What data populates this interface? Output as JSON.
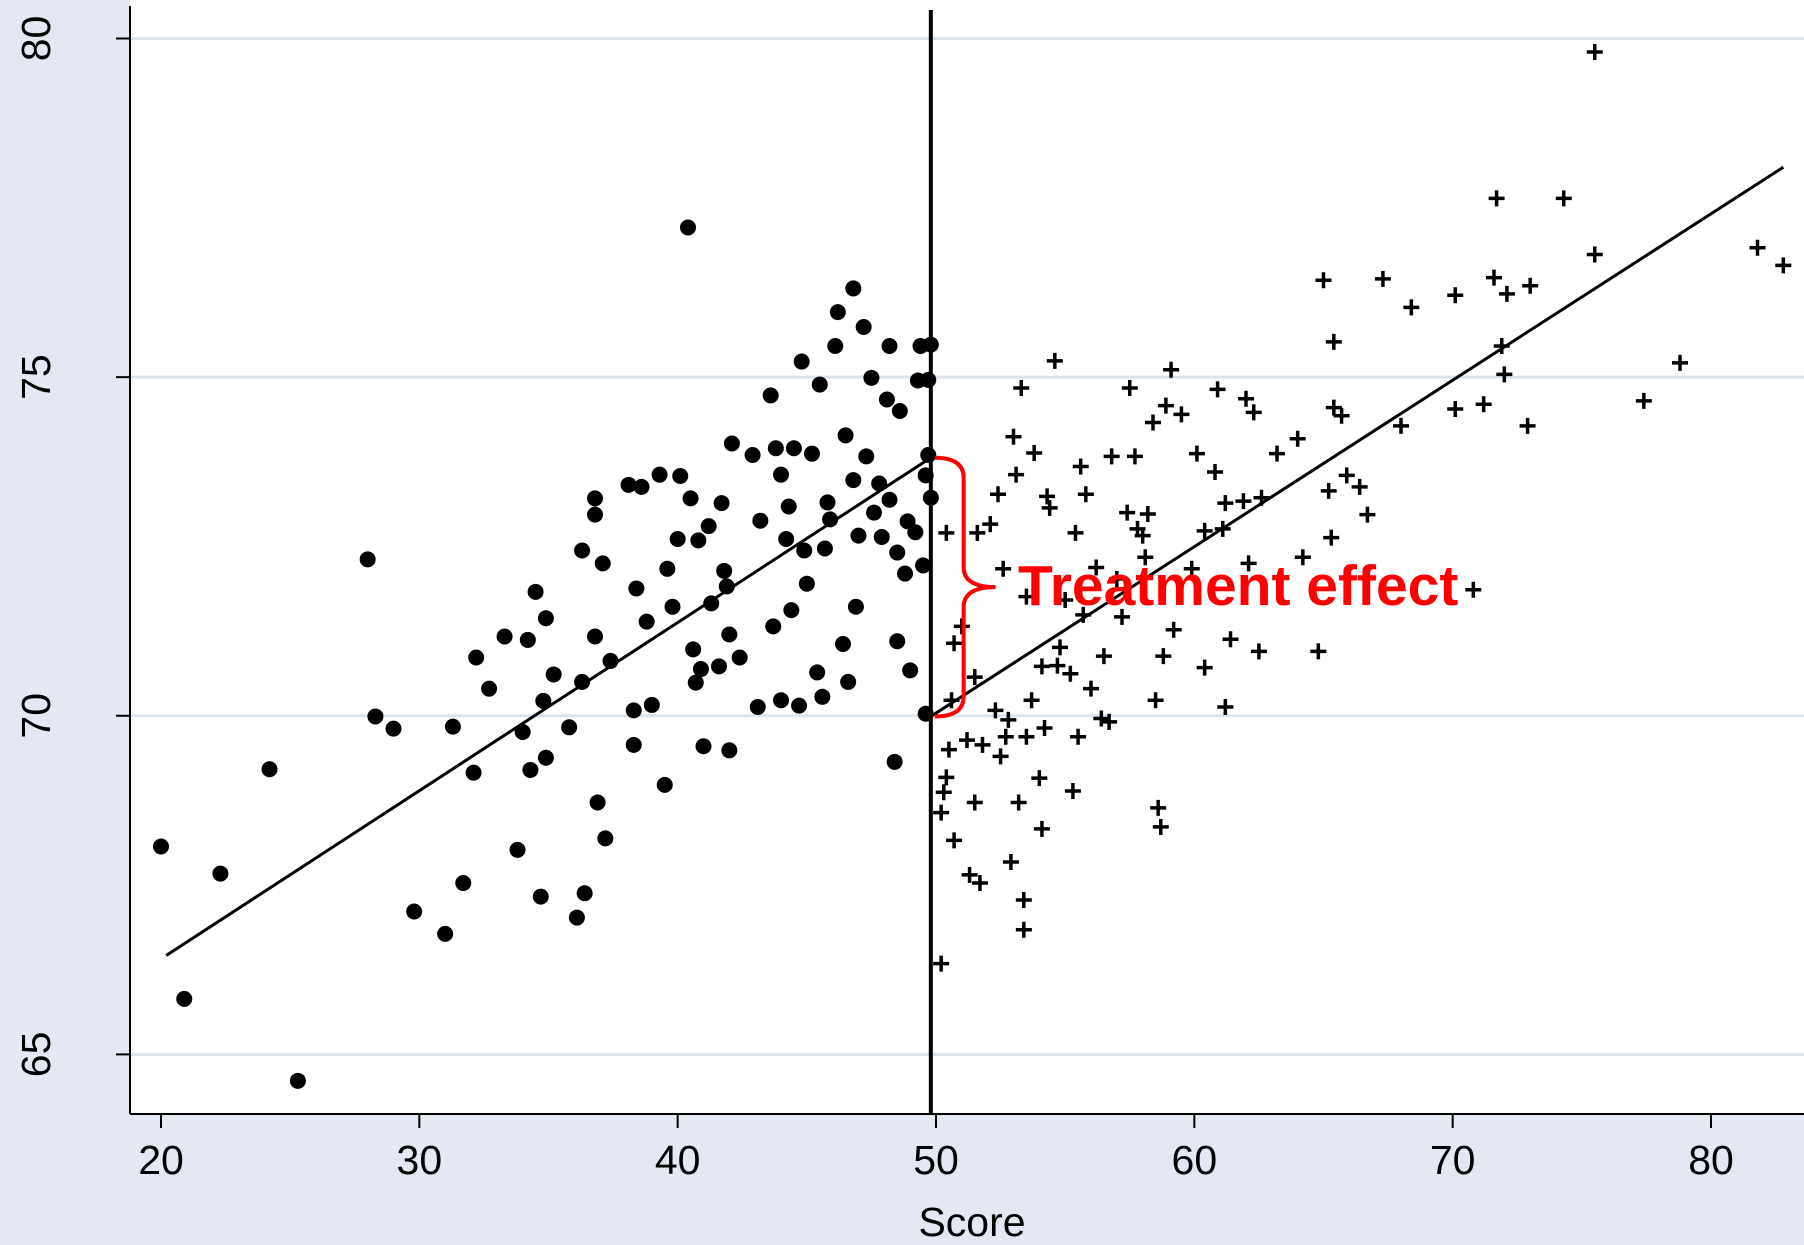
{
  "chart_data": {
    "type": "scatter",
    "xlabel": "Score",
    "xlim": [
      18.8,
      83.6
    ],
    "ylim": [
      64.12,
      80.48
    ],
    "xticks": [
      20,
      30,
      40,
      50,
      60,
      70,
      80
    ],
    "yticks": [
      65,
      70,
      75,
      80
    ],
    "grid": true,
    "series": [
      {
        "marker": "circle",
        "color": "#000000",
        "x": [
          20.0,
          20.9,
          22.3,
          24.2,
          25.3,
          28.0,
          28.3,
          29.0,
          29.8,
          31.0,
          31.3,
          31.7,
          32.1,
          32.2,
          32.7,
          33.3,
          33.8,
          34.0,
          34.2,
          34.3,
          34.5,
          34.7,
          34.8,
          34.9,
          34.9,
          35.2,
          35.8,
          36.1,
          36.3,
          36.3,
          36.4,
          36.8,
          36.8,
          36.8,
          36.9,
          37.1,
          37.2,
          37.4,
          38.1,
          38.3,
          38.3,
          38.4,
          38.6,
          38.8,
          39.0,
          39.3,
          39.5,
          39.6,
          39.8,
          40.0,
          40.1,
          40.4,
          40.5,
          40.6,
          40.7,
          40.8,
          40.9,
          41.0,
          41.2,
          41.3,
          41.6,
          41.7,
          41.8,
          41.9,
          42.0,
          42.0,
          42.1,
          42.4,
          42.9,
          43.1,
          43.2,
          43.6,
          43.7,
          43.8,
          44.0,
          44.0,
          44.2,
          44.3,
          44.4,
          44.5,
          44.7,
          44.8,
          44.9,
          45.0,
          45.2,
          45.4,
          45.5,
          45.6,
          45.7,
          45.8,
          45.9,
          46.1,
          46.2,
          46.4,
          46.5,
          46.6,
          46.8,
          46.8,
          46.9,
          47.0,
          47.2,
          47.3,
          47.5,
          47.6,
          47.8,
          47.9,
          48.1,
          48.2,
          48.2,
          48.4,
          48.5,
          48.5,
          48.6,
          48.8,
          48.9,
          49.0,
          49.2,
          49.3,
          49.4,
          49.5,
          49.6,
          49.7,
          49.8,
          49.6,
          49.7,
          49.8
        ],
        "y": [
          68.07,
          65.82,
          67.67,
          69.21,
          64.61,
          72.31,
          69.99,
          69.81,
          67.11,
          66.78,
          69.84,
          67.53,
          69.16,
          70.86,
          70.4,
          71.17,
          68.02,
          69.76,
          71.12,
          69.2,
          71.83,
          67.33,
          70.22,
          71.44,
          69.38,
          70.61,
          69.83,
          67.02,
          70.5,
          72.44,
          67.38,
          72.97,
          73.21,
          71.17,
          68.72,
          72.25,
          68.19,
          70.81,
          73.41,
          69.57,
          70.08,
          71.88,
          73.38,
          71.39,
          70.16,
          73.56,
          68.98,
          72.17,
          71.61,
          72.61,
          73.54,
          77.21,
          73.21,
          70.98,
          70.49,
          72.59,
          70.69,
          69.55,
          72.8,
          71.66,
          70.73,
          73.14,
          72.14,
          71.91,
          71.2,
          69.49,
          74.02,
          70.86,
          73.85,
          70.13,
          72.88,
          74.73,
          71.32,
          73.95,
          73.56,
          70.23,
          72.61,
          73.09,
          71.56,
          73.95,
          70.15,
          75.23,
          72.44,
          71.95,
          73.87,
          70.64,
          74.89,
          70.28,
          72.47,
          73.15,
          72.9,
          75.46,
          75.96,
          71.06,
          74.14,
          70.5,
          76.31,
          73.48,
          71.61,
          72.66,
          75.74,
          73.83,
          74.99,
          73.0,
          73.43,
          72.64,
          74.67,
          75.46,
          73.19,
          69.32,
          72.41,
          71.1,
          74.5,
          72.1,
          72.87,
          70.67,
          72.71,
          74.95,
          75.46,
          72.22,
          73.55,
          74.96,
          75.48,
          70.03,
          73.85,
          73.22
        ]
      },
      {
        "marker": "plus",
        "color": "#000000",
        "x": [
          50.2,
          50.2,
          50.3,
          50.4,
          50.4,
          50.5,
          50.6,
          50.7,
          50.7,
          51.0,
          51.2,
          51.3,
          51.5,
          51.5,
          51.6,
          51.7,
          51.8,
          52.1,
          52.3,
          52.4,
          52.5,
          52.6,
          52.7,
          52.8,
          52.9,
          53.0,
          53.1,
          53.2,
          53.3,
          53.4,
          53.4,
          53.5,
          53.5,
          53.7,
          53.8,
          54.0,
          54.1,
          54.1,
          54.2,
          54.3,
          54.4,
          54.6,
          54.7,
          54.8,
          55.0,
          55.2,
          55.3,
          55.4,
          55.5,
          55.6,
          55.7,
          55.8,
          56.0,
          56.2,
          56.4,
          56.5,
          56.7,
          56.8,
          57.0,
          57.2,
          57.4,
          57.5,
          57.7,
          57.8,
          58.0,
          58.1,
          58.2,
          58.4,
          58.5,
          58.6,
          58.7,
          58.8,
          58.9,
          59.1,
          59.2,
          59.5,
          59.9,
          60.1,
          60.4,
          60.4,
          60.8,
          60.9,
          61.1,
          61.2,
          61.2,
          61.4,
          61.9,
          62.0,
          62.1,
          62.3,
          62.5,
          62.6,
          63.2,
          64.0,
          64.2,
          64.8,
          65.0,
          65.2,
          65.3,
          65.4,
          65.4,
          65.7,
          65.9,
          66.4,
          66.7,
          67.3,
          68.0,
          68.4,
          70.1,
          70.1,
          70.8,
          71.2,
          71.6,
          71.7,
          71.9,
          72.0,
          72.1,
          72.9,
          73.0,
          74.3,
          75.5,
          75.5,
          77.4,
          78.8,
          81.8,
          82.8
        ],
        "y": [
          66.34,
          68.57,
          68.87,
          69.09,
          72.7,
          69.5,
          70.23,
          68.16,
          71.07,
          71.32,
          69.64,
          67.65,
          68.72,
          70.57,
          72.7,
          67.53,
          69.57,
          72.83,
          70.08,
          73.27,
          69.4,
          72.17,
          69.69,
          69.94,
          67.84,
          74.12,
          73.56,
          68.72,
          74.84,
          66.84,
          67.28,
          71.76,
          69.69,
          70.23,
          73.88,
          69.08,
          68.33,
          70.73,
          69.82,
          73.24,
          73.07,
          75.24,
          70.74,
          71.01,
          71.71,
          70.62,
          68.89,
          72.7,
          69.69,
          73.68,
          71.49,
          73.27,
          70.4,
          72.19,
          69.96,
          70.88,
          69.91,
          73.83,
          72.02,
          71.46,
          73.0,
          74.84,
          73.83,
          72.76,
          72.66,
          72.34,
          72.98,
          74.33,
          70.23,
          68.64,
          68.36,
          70.88,
          74.58,
          75.11,
          71.27,
          74.45,
          72.17,
          73.87,
          70.71,
          72.73,
          73.6,
          74.82,
          72.76,
          70.13,
          73.14,
          71.13,
          73.17,
          74.68,
          72.25,
          74.48,
          70.95,
          73.22,
          73.87,
          74.09,
          72.34,
          70.95,
          76.43,
          73.32,
          72.63,
          75.52,
          74.55,
          74.43,
          73.55,
          73.38,
          72.97,
          76.45,
          74.28,
          76.03,
          76.21,
          74.53,
          71.86,
          74.6,
          76.47,
          77.64,
          75.46,
          75.04,
          76.23,
          74.28,
          76.35,
          77.64,
          76.81,
          79.8,
          74.65,
          75.21,
          76.91,
          76.65
        ]
      }
    ],
    "fit_lines": [
      {
        "x": [
          20.2,
          49.8
        ],
        "y": [
          66.46,
          73.81
        ]
      },
      {
        "x": [
          49.8,
          82.8
        ],
        "y": [
          69.99,
          78.1
        ]
      }
    ],
    "line_color": "#000000",
    "cutoff": 49.8,
    "annotation": {
      "text": "Treatment effect",
      "color": "#ff0000"
    }
  }
}
